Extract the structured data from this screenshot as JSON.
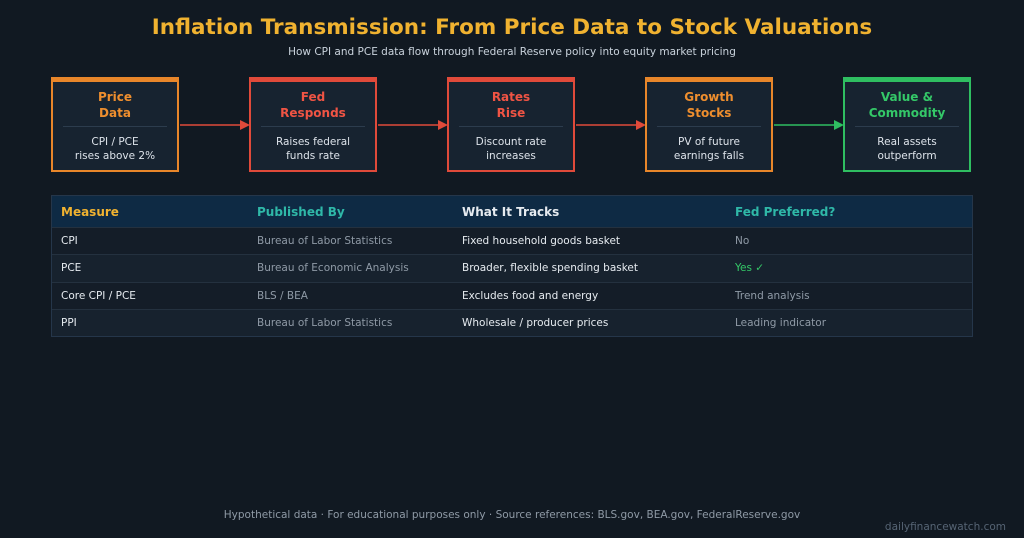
{
  "title": "Inflation Transmission: From Price Data to Stock Valuations",
  "subtitle": "How CPI and PCE data flow through Federal Reserve policy into equity market pricing",
  "colors": {
    "accent_gold": "#f0b230",
    "orange": "#e8862a",
    "red": "#e04a3a",
    "green": "#2fbe61",
    "teal": "#2fb8a8"
  },
  "flow": [
    {
      "title": "Price\nData",
      "body": "CPI / PCE\nrises above 2%",
      "color": "orange"
    },
    {
      "title": "Fed\nResponds",
      "body": "Raises federal\nfunds rate",
      "color": "red"
    },
    {
      "title": "Rates\nRise",
      "body": "Discount rate\nincreases",
      "color": "red"
    },
    {
      "title": "Growth\nStocks",
      "body": "PV of future\nearnings falls",
      "color": "orange"
    },
    {
      "title": "Value &\nCommodity",
      "body": "Real assets\noutperform",
      "color": "green"
    }
  ],
  "table": {
    "headers": [
      "Measure",
      "Published By",
      "What It Tracks",
      "Fed Preferred?"
    ],
    "rows": [
      [
        "CPI",
        "Bureau of Labor Statistics",
        "Fixed household goods basket",
        "No"
      ],
      [
        "PCE",
        "Bureau of Economic Analysis",
        "Broader, flexible spending basket",
        "Yes ✓"
      ],
      [
        "Core CPI / PCE",
        "BLS / BEA",
        "Excludes food and energy",
        "Trend analysis"
      ],
      [
        "PPI",
        "Bureau of Labor Statistics",
        "Wholesale / producer prices",
        "Leading indicator"
      ]
    ]
  },
  "footer": "Hypothetical data · For educational purposes only · Source references: BLS.gov, BEA.gov, FederalReserve.gov",
  "brand": "dailyfinancewatch.com"
}
